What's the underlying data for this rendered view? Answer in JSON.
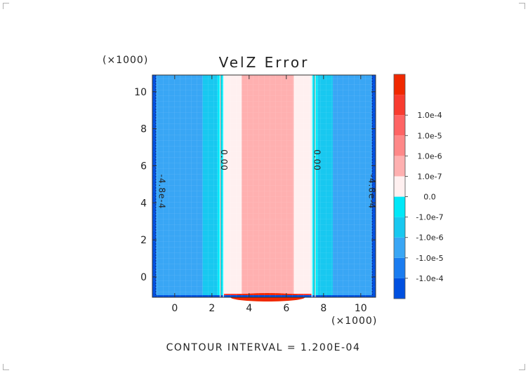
{
  "chart_data": {
    "type": "heatmap",
    "title": "VelZ Error",
    "x_scale_label": "(×1000)",
    "y_scale_label": "(×1000)",
    "xlim": [
      -1.2,
      10.8
    ],
    "ylim": [
      -1.1,
      10.9
    ],
    "x_ticks": [
      0,
      2,
      4,
      6,
      8,
      10
    ],
    "y_ticks": [
      0,
      2,
      4,
      6,
      8,
      10
    ],
    "x_tick_labels": [
      "0",
      "2",
      "4",
      "6",
      "8",
      "10"
    ],
    "y_tick_labels": [
      "0",
      "2",
      "4",
      "6",
      "8",
      "10"
    ],
    "bands": [
      {
        "x0": -1.2,
        "x1": -1.0,
        "level": 0
      },
      {
        "x0": -1.0,
        "x1": 1.5,
        "level": 2
      },
      {
        "x0": 1.5,
        "x1": 2.3,
        "level": 3
      },
      {
        "x0": 2.3,
        "x1": 2.65,
        "level": 4
      },
      {
        "x0": 2.65,
        "x1": 3.6,
        "level": 5
      },
      {
        "x0": 3.6,
        "x1": 6.4,
        "level": 6
      },
      {
        "x0": 6.4,
        "x1": 7.35,
        "level": 5
      },
      {
        "x0": 7.35,
        "x1": 7.7,
        "level": 4
      },
      {
        "x0": 7.7,
        "x1": 8.5,
        "level": 3
      },
      {
        "x0": 8.5,
        "x1": 10.6,
        "level": 2
      },
      {
        "x0": 10.6,
        "x1": 10.8,
        "level": 0
      }
    ],
    "contour_labels": [
      {
        "x": 2.5,
        "y": 6.3,
        "text": "0.00",
        "rotate": 90
      },
      {
        "x": 7.5,
        "y": 6.3,
        "text": "0.00",
        "rotate": 90
      },
      {
        "x": -0.85,
        "y": 4.6,
        "text": "-4.8e-4",
        "rotate": 90
      },
      {
        "x": 10.45,
        "y": 4.6,
        "text": "-4.8e-4",
        "rotate": 90
      }
    ],
    "colorbar": {
      "colors": [
        "#0050e0",
        "#1a7cf0",
        "#39a6f5",
        "#18c8f0",
        "#00e8f8",
        "#fff0f0",
        "#ffb0b0",
        "#ff8888",
        "#ff6464",
        "#f83c30",
        "#f02800"
      ],
      "labels": [
        "-1.0e-4",
        "-1.0e-5",
        "-1.0e-6",
        "-1.0e-7",
        "0.0",
        "1.0e-7",
        "1.0e-6",
        "1.0e-5",
        "1.0e-4"
      ]
    },
    "footer": "CONTOUR INTERVAL = 1.200E-04"
  }
}
